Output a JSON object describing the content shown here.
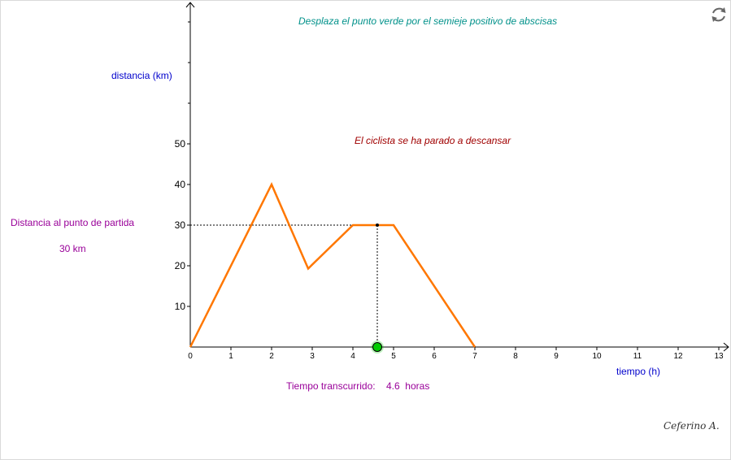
{
  "instruction": "Desplaza el punto verde por el semieje positivo de abscisas",
  "status_message": "El ciclista se ha parado a descansar",
  "distance_label": "Distancia al punto  de partida",
  "distance_value": "30 km",
  "time_label": "Tiempo transcurrido:",
  "time_value": "4.6",
  "time_unit": "horas",
  "author": "Ceferino A.",
  "icons": {
    "reset": "refresh-icon"
  },
  "chart_data": {
    "type": "line",
    "xlabel": "tiempo (h)",
    "ylabel": "distancia (km)",
    "xlim": [
      0,
      13
    ],
    "ylim": [
      0,
      50
    ],
    "x_ticks": [
      0,
      1,
      2,
      3,
      4,
      5,
      6,
      7,
      8,
      9,
      10,
      11,
      12,
      13
    ],
    "y_ticks": [
      10,
      20,
      30,
      40,
      50
    ],
    "series": [
      {
        "color": "#ff7700",
        "x": [
          0,
          2,
          2.9,
          4,
          5,
          7
        ],
        "y": [
          0,
          40,
          19.3,
          30,
          30,
          0
        ]
      }
    ],
    "slider_point": {
      "x": 4.6,
      "y": 30,
      "color": "#00cc00"
    },
    "guide_lines": "dotted",
    "grid": false
  }
}
